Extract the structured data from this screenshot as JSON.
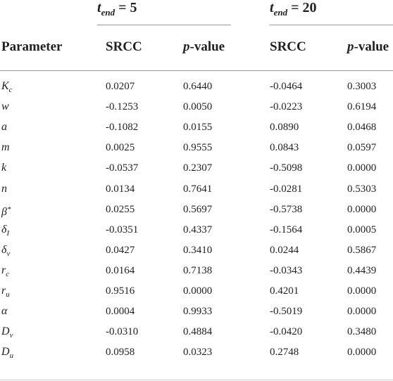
{
  "groups": [
    {
      "var": "t",
      "sub": "end",
      "suffix": " = 5"
    },
    {
      "var": "t",
      "sub": "end",
      "suffix": " = 20"
    }
  ],
  "headers": {
    "parameter": "Parameter",
    "srcc": "SRCC",
    "p": "p",
    "value": "-value"
  },
  "rows": [
    {
      "sym": "K",
      "sub": "c",
      "sup": "",
      "v": [
        "0.0207",
        "0.6440",
        "-0.0464",
        "0.3003"
      ]
    },
    {
      "sym": "w",
      "sub": "",
      "sup": "",
      "v": [
        "-0.1253",
        "0.0050",
        "-0.0223",
        "0.6194"
      ]
    },
    {
      "sym": "a",
      "sub": "",
      "sup": "",
      "v": [
        "-0.1082",
        "0.0155",
        "0.0890",
        "0.0468"
      ]
    },
    {
      "sym": "m",
      "sub": "",
      "sup": "",
      "v": [
        "0.0025",
        "0.9555",
        "0.0843",
        "0.0597"
      ]
    },
    {
      "sym": "k",
      "sub": "",
      "sup": "",
      "v": [
        "-0.0537",
        "0.2307",
        "-0.5098",
        "0.0000"
      ]
    },
    {
      "sym": "n",
      "sub": "",
      "sup": "",
      "v": [
        "0.0134",
        "0.7641",
        "-0.0281",
        "0.5303"
      ]
    },
    {
      "sym": "β",
      "sub": "",
      "sup": "*",
      "v": [
        "0.0255",
        "0.5697",
        "-0.5738",
        "0.0000"
      ]
    },
    {
      "sym": "δ",
      "sub": "I",
      "sup": "",
      "v": [
        "-0.0351",
        "0.4337",
        "-0.1564",
        "0.0005"
      ]
    },
    {
      "sym": "δ",
      "sub": "v",
      "sup": "",
      "v": [
        "0.0427",
        "0.3410",
        "0.0244",
        "0.5867"
      ]
    },
    {
      "sym": "r",
      "sub": "c",
      "sup": "",
      "v": [
        "0.0164",
        "0.7138",
        "-0.0343",
        "0.4439"
      ]
    },
    {
      "sym": "r",
      "sub": "u",
      "sup": "",
      "v": [
        "0.9516",
        "0.0000",
        "0.4201",
        "0.0000"
      ]
    },
    {
      "sym": "α",
      "sub": "",
      "sup": "",
      "v": [
        "0.0004",
        "0.9933",
        "-0.5019",
        "0.0000"
      ]
    },
    {
      "sym": "D",
      "sub": "v",
      "sup": "",
      "v": [
        "-0.0310",
        "0.4884",
        "-0.0420",
        "0.3480"
      ]
    },
    {
      "sym": "D",
      "sub": "u",
      "sup": "",
      "v": [
        "0.0958",
        "0.0323",
        "0.2748",
        "0.0000"
      ]
    }
  ]
}
